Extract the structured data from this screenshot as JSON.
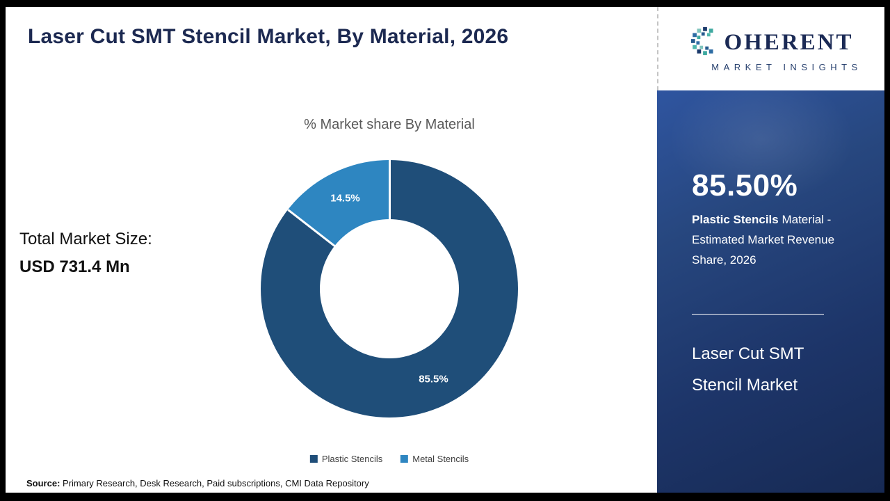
{
  "page": {
    "title": "Laser Cut SMT Stencil Market, By Material, 2026",
    "source_label": "Source:",
    "source_text": " Primary Research, Desk Research, Paid subscriptions, CMI Data Repository"
  },
  "left_panel": {
    "total_label": "Total Market Size:",
    "total_value": "USD 731.4 Mn"
  },
  "chart_data": {
    "type": "pie",
    "donut": true,
    "title": "% Market share By Material",
    "categories": [
      "Plastic Stencils",
      "Metal Stencils"
    ],
    "values": [
      85.5,
      14.5
    ],
    "labels": [
      "85.5%",
      "14.5%"
    ],
    "colors": [
      "#1f4e79",
      "#2e86c1"
    ],
    "legend_position": "bottom"
  },
  "sidebar": {
    "logo": {
      "word_display": "OHERENT",
      "subtitle": "MARKET INSIGHTS"
    },
    "stat_value": "85.50%",
    "stat_bold": "Plastic Stencils",
    "stat_rest": " Material - Estimated Market Revenue Share, 2026",
    "market_name": "Laser Cut SMT Stencil Market"
  }
}
